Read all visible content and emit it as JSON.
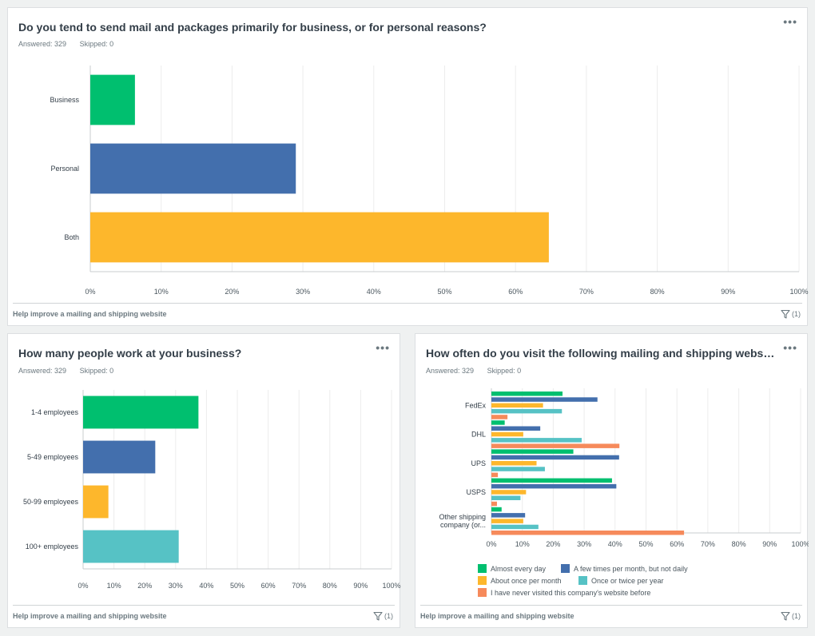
{
  "panels": [
    {
      "title": "Do you tend to send mail and packages primarily for business, or for personal reasons?",
      "answered": "Answered: 329",
      "skipped": "Skipped: 0",
      "footer_link": "Help improve a mailing and shipping website",
      "filter_count": "(1)"
    },
    {
      "title": "How many people work at your business?",
      "answered": "Answered: 329",
      "skipped": "Skipped: 0",
      "footer_link": "Help improve a mailing and shipping website",
      "filter_count": "(1)"
    },
    {
      "title": "How often do you visit the following mailing and shipping websites? P...",
      "answered": "Answered: 329",
      "skipped": "Skipped: 0",
      "footer_link": "Help improve a mailing and shipping website",
      "filter_count": "(1)"
    }
  ],
  "chart_data": [
    {
      "type": "bar",
      "orientation": "horizontal",
      "categories": [
        "Business",
        "Personal",
        "Both"
      ],
      "values": [
        6.3,
        29,
        64.7
      ],
      "colors": [
        "#00bf6f",
        "#436fad",
        "#fdb72c"
      ],
      "xlim": [
        0,
        100
      ],
      "xticks": [
        "0%",
        "10%",
        "20%",
        "30%",
        "40%",
        "50%",
        "60%",
        "70%",
        "80%",
        "90%",
        "100%"
      ],
      "grid": true
    },
    {
      "type": "bar",
      "orientation": "horizontal",
      "categories": [
        "1-4 employees",
        "5-49 employees",
        "50-99 employees",
        "100+ employees"
      ],
      "values": [
        37.4,
        23.4,
        8.2,
        31
      ],
      "colors": [
        "#00bf6f",
        "#436fad",
        "#fdb72c",
        "#56c2c5"
      ],
      "xlim": [
        0,
        100
      ],
      "xticks": [
        "0%",
        "10%",
        "20%",
        "30%",
        "40%",
        "50%",
        "60%",
        "70%",
        "80%",
        "90%",
        "100%"
      ],
      "grid": true
    },
    {
      "type": "bar",
      "orientation": "horizontal",
      "grouped": true,
      "categories": [
        "FedEx",
        "DHL",
        "UPS",
        "USPS",
        "Other shipping company (or..."
      ],
      "series": [
        {
          "name": "Almost every day",
          "color": "#00bf6f",
          "values": [
            23,
            4.3,
            26.5,
            39,
            3.3
          ]
        },
        {
          "name": "A few times per month, but not daily",
          "color": "#436fad",
          "values": [
            34.3,
            15.8,
            41.3,
            40.4,
            10.9
          ]
        },
        {
          "name": "About once per month",
          "color": "#fdb72c",
          "values": [
            16.7,
            10.3,
            14.6,
            11.2,
            10.3
          ]
        },
        {
          "name": "Once or twice per year",
          "color": "#56c2c5",
          "values": [
            22.8,
            29.2,
            17.3,
            9.4,
            15.2
          ]
        },
        {
          "name": "I have never visited this company's website before",
          "color": "#f68a5b",
          "values": [
            5.2,
            41.4,
            2.1,
            1.8,
            62.3
          ]
        }
      ],
      "xlim": [
        0,
        100
      ],
      "xticks": [
        "0%",
        "10%",
        "20%",
        "30%",
        "40%",
        "50%",
        "60%",
        "70%",
        "80%",
        "90%",
        "100%"
      ],
      "grid": true,
      "legend_position": "bottom"
    }
  ]
}
